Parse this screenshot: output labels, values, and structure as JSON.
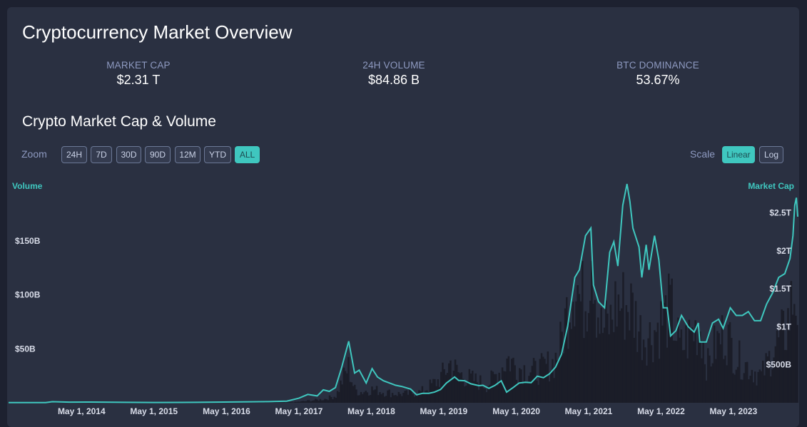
{
  "header": {
    "title": "Cryptocurrency Market Overview"
  },
  "stats": [
    {
      "label": "MARKET CAP",
      "value": "$2.31 T"
    },
    {
      "label": "24H VOLUME",
      "value": "$84.86 B"
    },
    {
      "label": "BTC DOMINANCE",
      "value": "53.67%"
    }
  ],
  "chart_section": {
    "subtitle": "Crypto Market Cap & Volume",
    "zoom_label": "Zoom",
    "zoom_options": [
      "24H",
      "7D",
      "30D",
      "90D",
      "12M",
      "YTD",
      "ALL"
    ],
    "zoom_selected": "ALL",
    "scale_label": "Scale",
    "scale_options": [
      "Linear",
      "Log"
    ],
    "scale_selected": "Linear"
  },
  "colors": {
    "line": "#3fc7bf",
    "volume_bars": "#1b1d28",
    "background": "#2a3041",
    "accent": "#3fc7bf"
  },
  "chart_data": {
    "type": "line",
    "y_left_label": "Volume",
    "y_right_label": "Market Cap",
    "y_left_ticks": [
      "$50B",
      "$100B",
      "$150B"
    ],
    "y_left_tick_values": [
      50,
      100,
      150
    ],
    "y_left_range": [
      0,
      200
    ],
    "y_right_ticks": [
      "$500B",
      "$1T",
      "$1.5T",
      "$2T",
      "$2.5T"
    ],
    "y_right_tick_values": [
      500,
      1000,
      1500,
      2000,
      2500
    ],
    "y_right_range": [
      0,
      2900
    ],
    "x_ticks": [
      "May 1, 2014",
      "May 1, 2015",
      "May 1, 2016",
      "May 1, 2017",
      "May 1, 2018",
      "May 1, 2019",
      "May 1, 2020",
      "May 1, 2021",
      "May 1, 2022",
      "May 1, 2023"
    ],
    "x_tick_values": [
      "2014-05-01",
      "2015-05-01",
      "2016-05-01",
      "2017-05-01",
      "2018-05-01",
      "2019-05-01",
      "2020-05-01",
      "2021-05-01",
      "2022-05-01",
      "2023-05-01"
    ],
    "x_range": [
      "2013-04-28",
      "2024-03-20"
    ],
    "grid": false,
    "series": [
      {
        "name": "Market Cap",
        "unit": "$B",
        "type": "line",
        "points": [
          [
            "2013-04-28",
            1.6
          ],
          [
            "2013-11-01",
            3
          ],
          [
            "2013-12-05",
            14
          ],
          [
            "2014-03-01",
            8
          ],
          [
            "2014-06-01",
            9
          ],
          [
            "2014-12-01",
            6
          ],
          [
            "2015-05-01",
            4
          ],
          [
            "2015-12-01",
            6
          ],
          [
            "2016-06-01",
            10
          ],
          [
            "2016-12-01",
            15
          ],
          [
            "2017-03-01",
            22
          ],
          [
            "2017-05-01",
            60
          ],
          [
            "2017-06-15",
            110
          ],
          [
            "2017-08-01",
            90
          ],
          [
            "2017-09-01",
            170
          ],
          [
            "2017-10-01",
            150
          ],
          [
            "2017-11-01",
            200
          ],
          [
            "2017-12-01",
            450
          ],
          [
            "2018-01-07",
            810
          ],
          [
            "2018-02-06",
            390
          ],
          [
            "2018-03-01",
            430
          ],
          [
            "2018-04-05",
            260
          ],
          [
            "2018-05-05",
            450
          ],
          [
            "2018-06-01",
            340
          ],
          [
            "2018-07-01",
            290
          ],
          [
            "2018-08-01",
            260
          ],
          [
            "2018-09-01",
            230
          ],
          [
            "2018-10-01",
            215
          ],
          [
            "2018-11-15",
            180
          ],
          [
            "2018-12-15",
            105
          ],
          [
            "2019-01-15",
            125
          ],
          [
            "2019-02-15",
            125
          ],
          [
            "2019-03-15",
            140
          ],
          [
            "2019-04-15",
            175
          ],
          [
            "2019-05-15",
            260
          ],
          [
            "2019-06-25",
            340
          ],
          [
            "2019-07-15",
            295
          ],
          [
            "2019-08-15",
            290
          ],
          [
            "2019-09-15",
            250
          ],
          [
            "2019-10-25",
            225
          ],
          [
            "2019-11-15",
            230
          ],
          [
            "2019-12-15",
            190
          ],
          [
            "2020-01-15",
            230
          ],
          [
            "2020-02-15",
            290
          ],
          [
            "2020-03-13",
            140
          ],
          [
            "2020-04-15",
            200
          ],
          [
            "2020-05-15",
            260
          ],
          [
            "2020-06-15",
            270
          ],
          [
            "2020-07-15",
            265
          ],
          [
            "2020-08-15",
            350
          ],
          [
            "2020-09-15",
            330
          ],
          [
            "2020-10-15",
            380
          ],
          [
            "2020-11-15",
            470
          ],
          [
            "2020-12-15",
            640
          ],
          [
            "2021-01-15",
            1010
          ],
          [
            "2021-02-20",
            1650
          ],
          [
            "2021-03-15",
            1750
          ],
          [
            "2021-04-15",
            2200
          ],
          [
            "2021-05-12",
            2300
          ],
          [
            "2021-05-25",
            1550
          ],
          [
            "2021-06-20",
            1330
          ],
          [
            "2021-07-20",
            1250
          ],
          [
            "2021-08-15",
            1980
          ],
          [
            "2021-09-05",
            2120
          ],
          [
            "2021-09-25",
            1800
          ],
          [
            "2021-10-20",
            2600
          ],
          [
            "2021-11-10",
            2880
          ],
          [
            "2021-11-25",
            2650
          ],
          [
            "2021-12-10",
            2300
          ],
          [
            "2022-01-10",
            2050
          ],
          [
            "2022-01-24",
            1650
          ],
          [
            "2022-02-15",
            2080
          ],
          [
            "2022-03-01",
            1750
          ],
          [
            "2022-03-29",
            2200
          ],
          [
            "2022-04-20",
            1880
          ],
          [
            "2022-05-12",
            1250
          ],
          [
            "2022-06-01",
            1250
          ],
          [
            "2022-06-18",
            880
          ],
          [
            "2022-07-15",
            950
          ],
          [
            "2022-08-12",
            1150
          ],
          [
            "2022-09-15",
            1000
          ],
          [
            "2022-10-15",
            930
          ],
          [
            "2022-11-05",
            1050
          ],
          [
            "2022-11-12",
            800
          ],
          [
            "2022-12-15",
            800
          ],
          [
            "2023-01-15",
            1050
          ],
          [
            "2023-02-15",
            1100
          ],
          [
            "2023-03-10",
            980
          ],
          [
            "2023-04-15",
            1250
          ],
          [
            "2023-05-15",
            1150
          ],
          [
            "2023-06-15",
            1150
          ],
          [
            "2023-07-15",
            1200
          ],
          [
            "2023-08-15",
            1080
          ],
          [
            "2023-09-15",
            1080
          ],
          [
            "2023-10-15",
            1300
          ],
          [
            "2023-11-15",
            1450
          ],
          [
            "2023-12-15",
            1650
          ],
          [
            "2024-01-15",
            1700
          ],
          [
            "2024-02-10",
            1900
          ],
          [
            "2024-02-25",
            2200
          ],
          [
            "2024-03-05",
            2600
          ],
          [
            "2024-03-13",
            2700
          ],
          [
            "2024-03-20",
            2450
          ]
        ]
      },
      {
        "name": "Volume",
        "unit": "$B",
        "type": "bar",
        "points": [
          [
            "2013-04-28",
            0.1
          ],
          [
            "2013-12-01",
            0.3
          ],
          [
            "2014-06-01",
            0.1
          ],
          [
            "2015-06-01",
            0.1
          ],
          [
            "2016-06-01",
            0.2
          ],
          [
            "2016-12-01",
            0.3
          ],
          [
            "2017-04-01",
            0.7
          ],
          [
            "2017-06-01",
            2
          ],
          [
            "2017-09-01",
            4
          ],
          [
            "2017-11-01",
            8
          ],
          [
            "2017-12-01",
            25
          ],
          [
            "2018-01-01",
            40
          ],
          [
            "2018-02-01",
            15
          ],
          [
            "2018-03-01",
            12
          ],
          [
            "2018-05-01",
            15
          ],
          [
            "2018-07-01",
            12
          ],
          [
            "2018-09-01",
            10
          ],
          [
            "2018-11-01",
            10
          ],
          [
            "2019-01-01",
            12
          ],
          [
            "2019-04-01",
            25
          ],
          [
            "2019-06-01",
            45
          ],
          [
            "2019-07-01",
            35
          ],
          [
            "2019-08-01",
            30
          ],
          [
            "2019-10-01",
            25
          ],
          [
            "2019-12-01",
            20
          ],
          [
            "2020-02-01",
            35
          ],
          [
            "2020-03-15",
            50
          ],
          [
            "2020-05-01",
            40
          ],
          [
            "2020-08-01",
            35
          ],
          [
            "2020-11-01",
            45
          ],
          [
            "2020-12-01",
            60
          ],
          [
            "2021-01-15",
            110
          ],
          [
            "2021-02-20",
            150
          ],
          [
            "2021-03-15",
            110
          ],
          [
            "2021-04-15",
            120
          ],
          [
            "2021-05-15",
            195
          ],
          [
            "2021-06-01",
            120
          ],
          [
            "2021-07-01",
            80
          ],
          [
            "2021-08-15",
            90
          ],
          [
            "2021-09-10",
            110
          ],
          [
            "2021-11-10",
            110
          ],
          [
            "2021-12-05",
            105
          ],
          [
            "2022-01-10",
            80
          ],
          [
            "2022-03-01",
            75
          ],
          [
            "2022-05-12",
            95
          ],
          [
            "2022-06-15",
            105
          ],
          [
            "2022-08-01",
            60
          ],
          [
            "2022-11-10",
            90
          ],
          [
            "2022-12-15",
            40
          ],
          [
            "2023-01-15",
            60
          ],
          [
            "2023-03-15",
            80
          ],
          [
            "2023-05-15",
            50
          ],
          [
            "2023-07-15",
            40
          ],
          [
            "2023-09-15",
            30
          ],
          [
            "2023-11-15",
            60
          ],
          [
            "2024-01-15",
            80
          ],
          [
            "2024-03-05",
            130
          ],
          [
            "2024-03-20",
            90
          ]
        ]
      }
    ]
  }
}
